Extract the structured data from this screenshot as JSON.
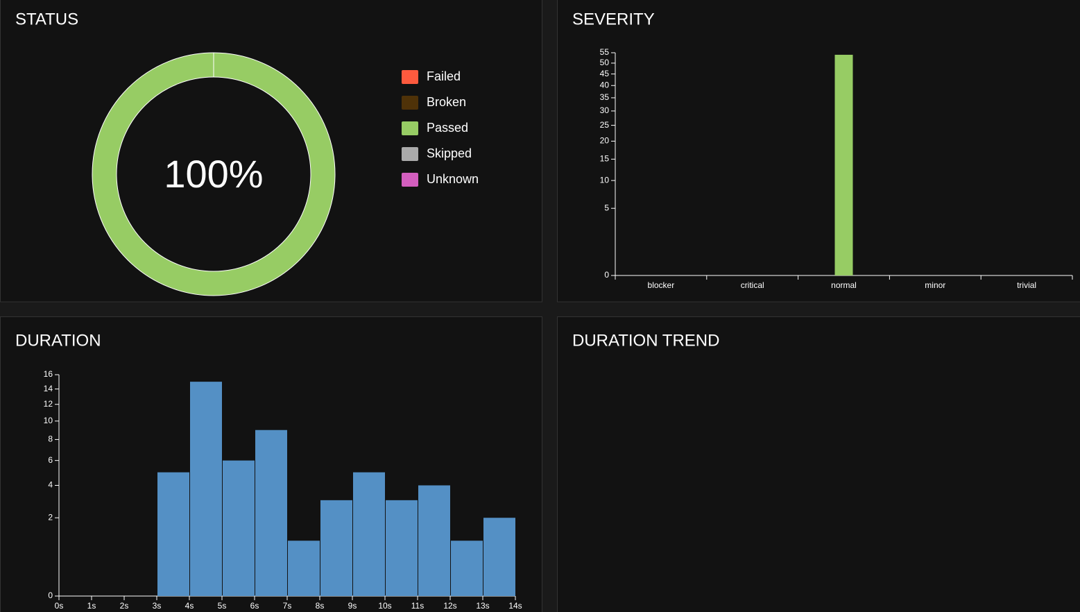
{
  "chart_data": [
    {
      "type": "pie",
      "title": "STATUS",
      "categories": [
        "Failed",
        "Broken",
        "Passed",
        "Skipped",
        "Unknown"
      ],
      "values": [
        0,
        0,
        100,
        0,
        0
      ],
      "colors": [
        "#fd5a3e",
        "#4f3208",
        "#97cc64",
        "#aaaaaa",
        "#d35ebe"
      ],
      "percent": {
        "value": 100,
        "label": "100%"
      },
      "legend": "right"
    },
    {
      "type": "bar",
      "title": "SEVERITY",
      "categories": [
        "blocker",
        "critical",
        "normal",
        "minor",
        "trivial"
      ],
      "values": [
        0,
        0,
        54,
        0,
        0
      ],
      "color": "#97cc64",
      "ylim": [
        0,
        55
      ],
      "yticks": [
        0,
        5,
        10,
        15,
        20,
        25,
        30,
        35,
        40,
        45,
        50,
        55
      ],
      "yscale": "sqrt"
    },
    {
      "type": "histogram",
      "title": "DURATION",
      "bins": [
        0,
        1,
        2,
        3,
        4,
        5,
        6,
        7,
        8,
        9,
        10,
        11,
        12,
        13,
        14
      ],
      "values": [
        0,
        0,
        0,
        5,
        15,
        6,
        9,
        1,
        3,
        5,
        3,
        4,
        1,
        2
      ],
      "color": "#5490c5",
      "xlim": [
        0,
        14
      ],
      "xticks": [
        {
          "value": 0,
          "label": "0s"
        },
        {
          "value": 1,
          "label": "1s"
        },
        {
          "value": 2,
          "label": "2s"
        },
        {
          "value": 3,
          "label": "3s"
        },
        {
          "value": 4,
          "label": "4s"
        },
        {
          "value": 5,
          "label": "5s"
        },
        {
          "value": 6,
          "label": "6s"
        },
        {
          "value": 7,
          "label": "7s"
        },
        {
          "value": 8,
          "label": "8s"
        },
        {
          "value": 9,
          "label": "9s"
        },
        {
          "value": 10,
          "label": "10s"
        },
        {
          "value": 11,
          "label": "11s"
        },
        {
          "value": 12,
          "label": "12s"
        },
        {
          "value": 13,
          "label": "13s"
        },
        {
          "value": 14,
          "label": "14s"
        }
      ],
      "ylim": [
        0,
        16
      ],
      "yticks": [
        0,
        2,
        4,
        6,
        8,
        10,
        12,
        14,
        16
      ],
      "yscale": "sqrt"
    }
  ],
  "trend": {
    "title": "DURATION TREND"
  }
}
